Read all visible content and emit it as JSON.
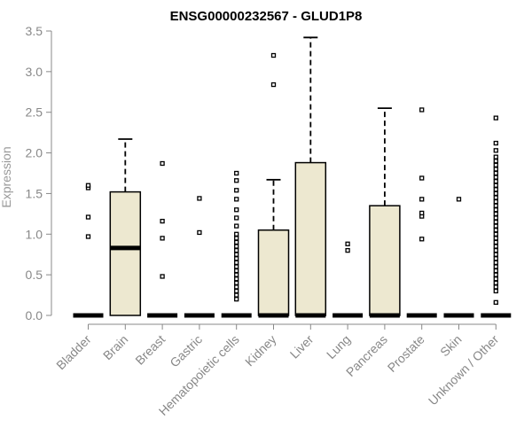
{
  "chart_data": {
    "type": "boxplot",
    "title": "ENSG00000232567 - GLUD1P8",
    "ylabel": "Expression",
    "xlabel": "",
    "ylim": [
      0,
      3.5
    ],
    "yticks": [
      "0.0",
      "0.5",
      "1.0",
      "1.5",
      "2.0",
      "2.5",
      "3.0",
      "3.5"
    ],
    "colors": {
      "box_fill": "#EDE8D0",
      "stroke": "#000000",
      "axis": "#888888"
    },
    "categories": [
      {
        "name": "Bladder",
        "q1": 0,
        "median": 0,
        "q3": 0,
        "whisker_low": 0,
        "whisker_high": 0,
        "outliers": [
          0.97,
          1.21,
          1.57,
          1.6
        ]
      },
      {
        "name": "Brain",
        "q1": 0,
        "median": 0.83,
        "q3": 1.52,
        "whisker_low": 0,
        "whisker_high": 2.17,
        "outliers": []
      },
      {
        "name": "Breast",
        "q1": 0,
        "median": 0,
        "q3": 0,
        "whisker_low": 0,
        "whisker_high": 0,
        "outliers": [
          0.48,
          0.95,
          1.16,
          1.87
        ]
      },
      {
        "name": "Gastric",
        "q1": 0,
        "median": 0,
        "q3": 0,
        "whisker_low": 0,
        "whisker_high": 0,
        "outliers": [
          1.02,
          1.44
        ]
      },
      {
        "name": "Hematopoietic cells",
        "q1": 0,
        "median": 0,
        "q3": 0,
        "whisker_low": 0,
        "whisker_high": 0,
        "outliers": [
          0.2,
          0.25,
          0.3,
          0.35,
          0.4,
          0.45,
          0.5,
          0.55,
          0.6,
          0.65,
          0.7,
          0.75,
          0.8,
          0.85,
          0.9,
          0.95,
          1.0,
          1.1,
          1.2,
          1.3,
          1.43,
          1.54,
          1.66,
          1.75
        ]
      },
      {
        "name": "Kidney",
        "q1": 0,
        "median": 0,
        "q3": 1.05,
        "whisker_low": 0,
        "whisker_high": 1.67,
        "outliers": [
          2.84,
          3.2
        ]
      },
      {
        "name": "Liver",
        "q1": 0,
        "median": 0,
        "q3": 1.88,
        "whisker_low": 0,
        "whisker_high": 3.42,
        "outliers": []
      },
      {
        "name": "Lung",
        "q1": 0,
        "median": 0,
        "q3": 0,
        "whisker_low": 0,
        "whisker_high": 0,
        "outliers": [
          0.8,
          0.88
        ]
      },
      {
        "name": "Pancreas",
        "q1": 0,
        "median": 0,
        "q3": 1.35,
        "whisker_low": 0,
        "whisker_high": 2.55,
        "outliers": []
      },
      {
        "name": "Prostate",
        "q1": 0,
        "median": 0,
        "q3": 0,
        "whisker_low": 0,
        "whisker_high": 0,
        "outliers": [
          0.94,
          1.22,
          1.26,
          1.43,
          1.69,
          2.53
        ]
      },
      {
        "name": "Skin",
        "q1": 0,
        "median": 0,
        "q3": 0,
        "whisker_low": 0,
        "whisker_high": 0,
        "outliers": [
          1.43
        ]
      },
      {
        "name": "Unknown / Other",
        "q1": 0,
        "median": 0,
        "q3": 0,
        "whisker_low": 0,
        "whisker_high": 0,
        "outliers": [
          0.16,
          0.3,
          0.35,
          0.4,
          0.45,
          0.5,
          0.55,
          0.6,
          0.65,
          0.7,
          0.75,
          0.8,
          0.85,
          0.9,
          0.95,
          1.0,
          1.05,
          1.1,
          1.15,
          1.2,
          1.25,
          1.3,
          1.35,
          1.4,
          1.45,
          1.5,
          1.55,
          1.6,
          1.65,
          1.7,
          1.75,
          1.8,
          1.85,
          1.9,
          1.95,
          2.03,
          2.12,
          2.43
        ]
      }
    ]
  }
}
